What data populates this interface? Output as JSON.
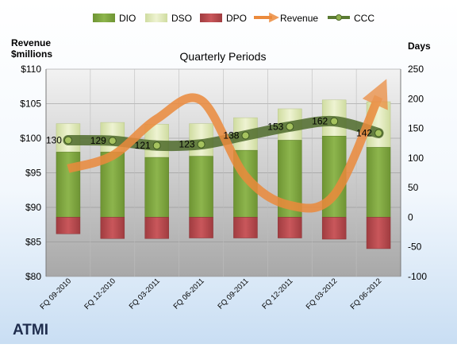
{
  "chart_data": {
    "type": "bar",
    "title": "Quarterly Periods",
    "company": "ATMI",
    "left_axis_label_lines": [
      "Revenue",
      "$millions"
    ],
    "right_axis_label": "Days",
    "left_axis": {
      "min": 80,
      "max": 110,
      "step": 5,
      "tick_labels": [
        "$80",
        "$85",
        "$90",
        "$95",
        "$100",
        "$105",
        "$110"
      ]
    },
    "right_axis": {
      "min": -100,
      "max": 250,
      "step": 50,
      "tick_labels": [
        "-100",
        "-50",
        "0",
        "50",
        "100",
        "150",
        "200",
        "250"
      ]
    },
    "categories": [
      "FQ 09-2010",
      "FQ 12-2010",
      "FQ 03-2011",
      "FQ 06-2011",
      "FQ 09-2011",
      "FQ 12-2011",
      "FQ 03-2012",
      "FQ 06-2012"
    ],
    "series": [
      {
        "name": "DIO",
        "axis": "right",
        "kind": "stacked-bar",
        "values": [
          110,
          110,
          101,
          103,
          113,
          130,
          137,
          118
        ]
      },
      {
        "name": "DSO",
        "axis": "right",
        "kind": "stacked-bar",
        "values": [
          48,
          50,
          56,
          55,
          55,
          53,
          61,
          77
        ]
      },
      {
        "name": "DPO",
        "axis": "right",
        "kind": "negative-bar",
        "values": [
          -28,
          -36,
          -36,
          -35,
          -35,
          -35,
          -37,
          -53
        ]
      },
      {
        "name": "Revenue",
        "axis": "left",
        "kind": "line",
        "values": [
          95.6,
          97.5,
          102.8,
          105.5,
          94.5,
          90.3,
          91.8,
          106.0
        ]
      },
      {
        "name": "CCC",
        "axis": "right",
        "kind": "line",
        "values": [
          130,
          129,
          121,
          123,
          138,
          153,
          162,
          142
        ]
      }
    ],
    "legend": {
      "placement": "top",
      "entries": [
        "DIO",
        "DSO",
        "DPO",
        "Revenue",
        "CCC"
      ]
    },
    "grid": true,
    "colors": {
      "DIO": "#7fa640",
      "DSO": "#dde6b3",
      "DPO": "#b9484c",
      "Revenue": "#eb8a3c",
      "CCC": "#5a7a32",
      "plot_top": "#f2f2f2",
      "plot_bottom": "#a8a8a8",
      "company_label": "#1f2d4d"
    }
  }
}
